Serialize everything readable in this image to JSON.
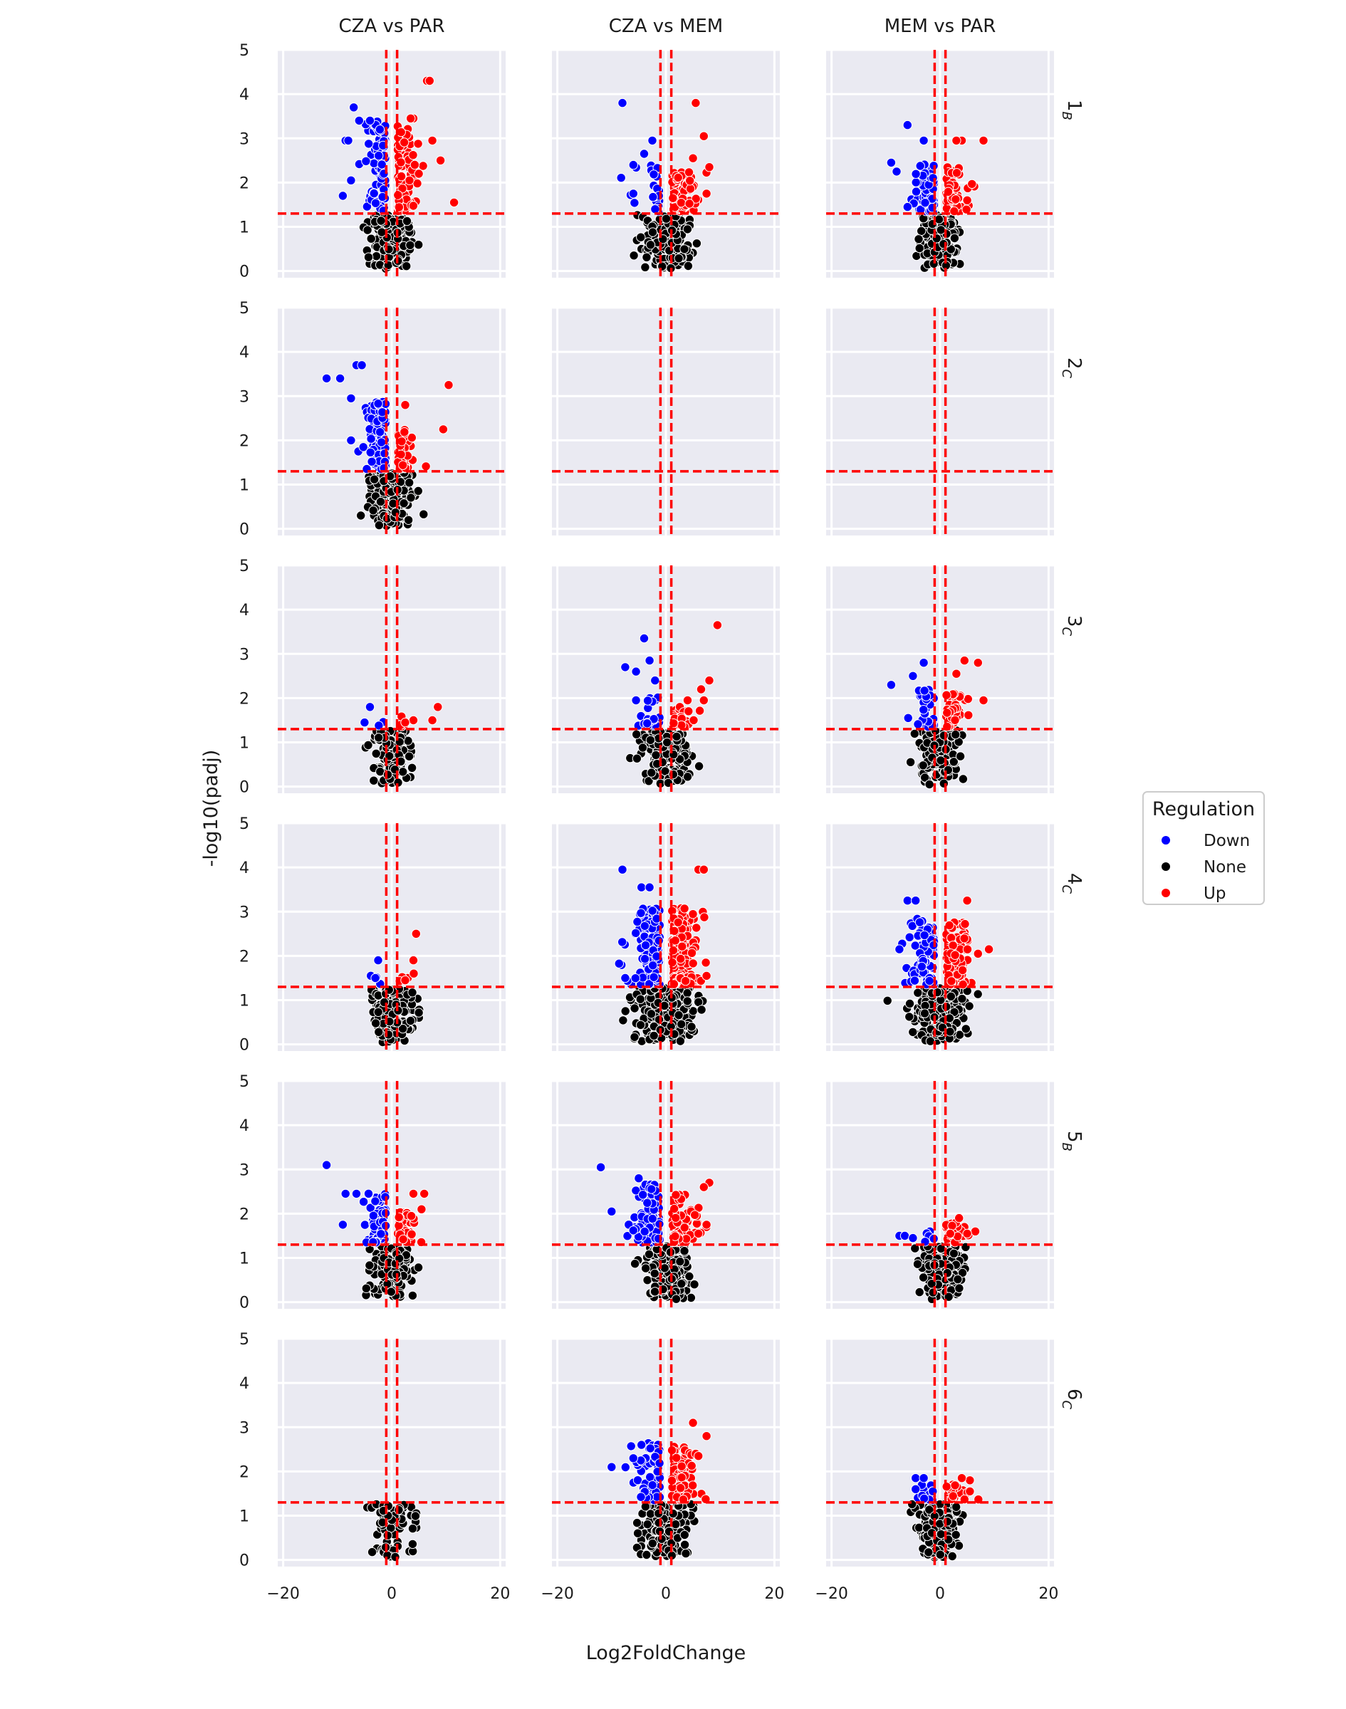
{
  "figure": {
    "xlabel": "Log2FoldChange",
    "ylabel": "-log10(padj)",
    "legend": {
      "title": "Regulation",
      "position": "right",
      "entries": [
        {
          "label": "Down",
          "color": "#0000ff"
        },
        {
          "label": "None",
          "color": "#000000"
        },
        {
          "label": "Up",
          "color": "#ff0000"
        }
      ]
    }
  },
  "chart_data": {
    "type": "scatter",
    "columns": [
      "CZA vs PAR",
      "CZA vs MEM",
      "MEM vs PAR"
    ],
    "rows": [
      {
        "main": "1",
        "sub": "B"
      },
      {
        "main": "2",
        "sub": "C"
      },
      {
        "main": "3",
        "sub": "C"
      },
      {
        "main": "4",
        "sub": "C"
      },
      {
        "main": "5",
        "sub": "B"
      },
      {
        "main": "6",
        "sub": "C"
      }
    ],
    "xlim": [
      -21,
      21
    ],
    "ylim": [
      -0.15,
      5
    ],
    "xticks": [
      -20,
      0,
      20
    ],
    "yticks": [
      0,
      1,
      2,
      3,
      4,
      5
    ],
    "grid": true,
    "thresholds": {
      "log2fc": [
        -1,
        1
      ],
      "neg_log10_padj": 1.3
    },
    "series_colors": {
      "Down": "#0000ff",
      "None": "#000000",
      "Up": "#ff0000"
    },
    "panels": [
      {
        "row": 0,
        "col": 0,
        "seed": 101,
        "counts": {
          "down": 90,
          "up": 90,
          "none": 180
        },
        "xw": 3.2,
        "yd": 3.3,
        "yu": 3.2,
        "down_extra": [
          [
            -7,
            3.7
          ],
          [
            -8.5,
            2.95
          ],
          [
            -9,
            1.7
          ],
          [
            -7.5,
            2.05
          ],
          [
            -4,
            3.4
          ],
          [
            -6,
            3.4
          ],
          [
            -8,
            2.95
          ]
        ],
        "up_extra": [
          [
            6.5,
            4.3
          ],
          [
            7,
            4.3
          ],
          [
            11.5,
            1.55
          ],
          [
            9,
            2.5
          ],
          [
            7.5,
            2.95
          ],
          [
            4,
            3.45
          ],
          [
            3.5,
            3.45
          ],
          [
            5,
            2.2
          ]
        ]
      },
      {
        "row": 0,
        "col": 1,
        "seed": 202,
        "counts": {
          "down": 25,
          "up": 80,
          "none": 170
        },
        "xw": 4.2,
        "yd": 2.4,
        "yu": 2.2,
        "down_extra": [
          [
            -8,
            3.8
          ],
          [
            -6,
            2.4
          ],
          [
            -4,
            2.65
          ],
          [
            -2.5,
            2.95
          ],
          [
            -6,
            1.75
          ]
        ],
        "up_extra": [
          [
            5.5,
            3.8
          ],
          [
            7,
            3.05
          ],
          [
            8,
            2.35
          ],
          [
            7.5,
            1.75
          ],
          [
            5,
            2.55
          ]
        ]
      },
      {
        "row": 0,
        "col": 2,
        "seed": 303,
        "counts": {
          "down": 70,
          "up": 70,
          "none": 160
        },
        "xw": 3.2,
        "yd": 2.4,
        "yu": 2.3,
        "down_extra": [
          [
            -6,
            3.3
          ],
          [
            -9,
            2.45
          ],
          [
            -8,
            2.25
          ],
          [
            -6,
            1.45
          ],
          [
            -3,
            2.95
          ]
        ],
        "up_extra": [
          [
            8,
            2.95
          ],
          [
            4,
            2.95
          ],
          [
            3,
            2.95
          ],
          [
            5,
            1.6
          ]
        ]
      },
      {
        "row": 1,
        "col": 0,
        "seed": 404,
        "counts": {
          "down": 100,
          "up": 45,
          "none": 160
        },
        "xw": 3.2,
        "yd": 2.8,
        "yu": 2.2,
        "down_extra": [
          [
            -12,
            3.4
          ],
          [
            -9.5,
            3.4
          ],
          [
            -6.5,
            3.7
          ],
          [
            -5.5,
            3.7
          ],
          [
            -7.5,
            2.95
          ],
          [
            -7.5,
            2.0
          ]
        ],
        "up_extra": [
          [
            10.5,
            3.25
          ],
          [
            9.5,
            2.25
          ],
          [
            2.5,
            2.8
          ]
        ]
      },
      {
        "row": 1,
        "col": 1,
        "seed": 505,
        "counts": {
          "down": 0,
          "up": 0,
          "none": 0
        },
        "xw": 3,
        "yd": 2,
        "yu": 2,
        "down_extra": [],
        "up_extra": []
      },
      {
        "row": 1,
        "col": 2,
        "seed": 606,
        "counts": {
          "down": 0,
          "up": 0,
          "none": 0
        },
        "xw": 3,
        "yd": 2,
        "yu": 2,
        "down_extra": [],
        "up_extra": []
      },
      {
        "row": 2,
        "col": 0,
        "seed": 707,
        "counts": {
          "down": 2,
          "up": 4,
          "none": 110
        },
        "xw": 3.0,
        "yd": 1.6,
        "yu": 1.6,
        "down_extra": [
          [
            -5,
            1.45
          ],
          [
            -4,
            1.8
          ]
        ],
        "up_extra": [
          [
            8.5,
            1.8
          ],
          [
            7.5,
            1.5
          ],
          [
            4,
            1.5
          ],
          [
            2.5,
            1.45
          ]
        ]
      },
      {
        "row": 2,
        "col": 1,
        "seed": 808,
        "counts": {
          "down": 20,
          "up": 30,
          "none": 150
        },
        "xw": 3.5,
        "yd": 2.0,
        "yu": 1.8,
        "down_extra": [
          [
            -4,
            3.35
          ],
          [
            -3,
            2.85
          ],
          [
            -7.5,
            2.7
          ],
          [
            -5.5,
            2.6
          ],
          [
            -2,
            2.4
          ],
          [
            -5.5,
            1.95
          ]
        ],
        "up_extra": [
          [
            9.5,
            3.65
          ],
          [
            8,
            2.4
          ],
          [
            6.5,
            2.2
          ],
          [
            7,
            1.95
          ],
          [
            4,
            1.95
          ]
        ]
      },
      {
        "row": 2,
        "col": 2,
        "seed": 909,
        "counts": {
          "down": 30,
          "up": 50,
          "none": 140
        },
        "xw": 3.3,
        "yd": 2.2,
        "yu": 2.1,
        "down_extra": [
          [
            -9,
            2.3
          ],
          [
            -3,
            2.8
          ],
          [
            -5,
            2.5
          ]
        ],
        "up_extra": [
          [
            7,
            2.8
          ],
          [
            4.5,
            2.85
          ],
          [
            8,
            1.95
          ],
          [
            3,
            2.55
          ]
        ]
      },
      {
        "row": 3,
        "col": 0,
        "seed": 1010,
        "counts": {
          "down": 3,
          "up": 4,
          "none": 150
        },
        "xw": 3.0,
        "yd": 1.6,
        "yu": 1.6,
        "down_extra": [
          [
            -2.5,
            1.9
          ],
          [
            -3,
            1.5
          ]
        ],
        "up_extra": [
          [
            4.5,
            2.5
          ],
          [
            4,
            1.9
          ],
          [
            2.5,
            1.45
          ]
        ]
      },
      {
        "row": 3,
        "col": 1,
        "seed": 1111,
        "counts": {
          "down": 110,
          "up": 150,
          "none": 220
        },
        "xw": 4.5,
        "yd": 3.0,
        "yu": 3.0,
        "down_extra": [
          [
            -8,
            3.95
          ],
          [
            -4.5,
            3.55
          ],
          [
            -3,
            3.55
          ],
          [
            -7.5,
            1.5
          ]
        ],
        "up_extra": [
          [
            6,
            3.95
          ],
          [
            7,
            3.95
          ],
          [
            7.5,
            1.55
          ]
        ]
      },
      {
        "row": 3,
        "col": 2,
        "seed": 1212,
        "counts": {
          "down": 90,
          "up": 100,
          "none": 200
        },
        "xw": 4.2,
        "yd": 2.8,
        "yu": 2.7,
        "down_extra": [
          [
            -6,
            3.25
          ],
          [
            -4.5,
            3.25
          ],
          [
            -7.5,
            2.15
          ]
        ],
        "up_extra": [
          [
            9,
            2.15
          ],
          [
            7,
            2.05
          ],
          [
            5,
            3.25
          ]
        ]
      },
      {
        "row": 4,
        "col": 0,
        "seed": 1313,
        "counts": {
          "down": 60,
          "up": 40,
          "none": 160
        },
        "xw": 3.4,
        "yd": 2.4,
        "yu": 2.0,
        "down_extra": [
          [
            -12,
            3.1
          ],
          [
            -8.5,
            2.45
          ],
          [
            -9,
            1.75
          ],
          [
            -6.5,
            2.45
          ]
        ],
        "up_extra": [
          [
            6,
            2.45
          ],
          [
            4,
            2.45
          ],
          [
            5.5,
            2.1
          ]
        ]
      },
      {
        "row": 4,
        "col": 1,
        "seed": 1414,
        "counts": {
          "down": 120,
          "up": 70,
          "none": 180
        },
        "xw": 3.8,
        "yd": 2.6,
        "yu": 2.4,
        "down_extra": [
          [
            -12,
            3.05
          ],
          [
            -10,
            2.05
          ],
          [
            -5,
            2.8
          ]
        ],
        "up_extra": [
          [
            8,
            2.7
          ],
          [
            7,
            2.6
          ],
          [
            7.5,
            1.75
          ],
          [
            6,
            1.55
          ]
        ]
      },
      {
        "row": 4,
        "col": 2,
        "seed": 1515,
        "counts": {
          "down": 5,
          "up": 40,
          "none": 170
        },
        "xw": 3.2,
        "yd": 1.6,
        "yu": 1.8,
        "down_extra": [
          [
            -7.5,
            1.5
          ],
          [
            -6.5,
            1.5
          ],
          [
            -5,
            1.45
          ]
        ],
        "up_extra": [
          [
            6.5,
            1.6
          ],
          [
            5,
            1.55
          ],
          [
            3.5,
            1.9
          ]
        ]
      },
      {
        "row": 5,
        "col": 0,
        "seed": 1616,
        "counts": {
          "down": 0,
          "up": 0,
          "none": 90
        },
        "xw": 3.2,
        "yd": 1.5,
        "yu": 1.5,
        "down_extra": [],
        "up_extra": []
      },
      {
        "row": 5,
        "col": 1,
        "seed": 1717,
        "counts": {
          "down": 70,
          "up": 70,
          "none": 180
        },
        "xw": 3.8,
        "yd": 2.6,
        "yu": 2.5,
        "down_extra": [
          [
            -10,
            2.1
          ],
          [
            -4.5,
            2.6
          ],
          [
            -6,
            2.3
          ]
        ],
        "up_extra": [
          [
            7.5,
            2.8
          ],
          [
            5,
            3.1
          ],
          [
            5.5,
            2.4
          ],
          [
            6,
            2.35
          ]
        ]
      },
      {
        "row": 5,
        "col": 2,
        "seed": 1818,
        "counts": {
          "down": 12,
          "up": 20,
          "none": 170
        },
        "xw": 3.2,
        "yd": 1.7,
        "yu": 1.7,
        "down_extra": [
          [
            -4.5,
            1.85
          ],
          [
            -3,
            1.85
          ],
          [
            -4.5,
            1.6
          ]
        ],
        "up_extra": [
          [
            5.5,
            1.8
          ],
          [
            4,
            1.85
          ],
          [
            5.5,
            1.55
          ]
        ]
      }
    ]
  }
}
